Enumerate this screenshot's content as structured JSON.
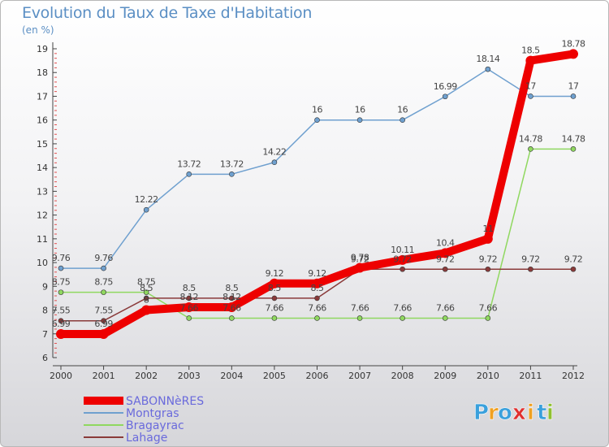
{
  "chart_data": {
    "type": "line",
    "title": "Evolution du Taux de Taxe d'Habitation",
    "ylabel": "(en %)",
    "xlabel": "",
    "x": [
      "2000",
      "2001",
      "2002",
      "2003",
      "2004",
      "2005",
      "2006",
      "2007",
      "2008",
      "2009",
      "2010",
      "2011",
      "2012"
    ],
    "ylim": [
      6,
      19
    ],
    "yticks": [
      "6",
      "7",
      "8",
      "9",
      "10",
      "11",
      "12",
      "13",
      "14",
      "15",
      "16",
      "17",
      "18",
      "19"
    ],
    "series": [
      {
        "name": "SABONNèRES",
        "color": "#ee0000",
        "values": [
          6.99,
          6.99,
          8,
          8.12,
          8.12,
          9.12,
          9.12,
          9.78,
          10.11,
          10.4,
          11,
          18.5,
          18.78
        ],
        "labels": [
          "6.99",
          "6.99",
          "8",
          "8.12",
          "8.12",
          "9.12",
          "9.12",
          "9.78",
          "10.11",
          "10.4",
          "11",
          "18.5",
          "18.78"
        ]
      },
      {
        "name": "Montgras",
        "color": "#6fa0cf",
        "values": [
          9.76,
          9.76,
          12.22,
          13.72,
          13.72,
          14.22,
          16,
          16,
          16,
          16.99,
          18.14,
          17,
          17
        ],
        "labels": [
          "9.76",
          "9.76",
          "12.22",
          "13.72",
          "13.72",
          "14.22",
          "16",
          "16",
          "16",
          "16.99",
          "18.14",
          "17",
          "17"
        ]
      },
      {
        "name": "Bragayrac",
        "color": "#90d860",
        "values": [
          8.75,
          8.75,
          8.75,
          7.66,
          7.66,
          7.66,
          7.66,
          7.66,
          7.66,
          7.66,
          7.66,
          14.78,
          14.78
        ],
        "labels": [
          "8.75",
          "8.75",
          "8.75",
          "7.66",
          "7.66",
          "7.66",
          "7.66",
          "7.66",
          "7.66",
          "7.66",
          "7.66",
          "14.78",
          "14.78"
        ]
      },
      {
        "name": "Lahage",
        "color": "#8a3a3a",
        "values": [
          7.55,
          7.55,
          8.5,
          8.5,
          8.5,
          8.5,
          8.5,
          9.72,
          9.72,
          9.72,
          9.72,
          9.72,
          9.72
        ],
        "labels": [
          "7.55",
          "7.55",
          "8.5",
          "8.5",
          "8.5",
          "8.5",
          "8.5",
          "9.72",
          "9.72",
          "9.72",
          "9.72",
          "9.72",
          "9.72"
        ]
      }
    ]
  },
  "logo": {
    "text": "Proxiti",
    "letters": [
      "P",
      "r",
      "o",
      "x",
      "i",
      "t",
      "i"
    ],
    "colors": [
      "#3aa0dc",
      "#f0a020",
      "#3aa0dc",
      "#e03030",
      "#f0a020",
      "#3aa0dc",
      "#90c030"
    ]
  }
}
